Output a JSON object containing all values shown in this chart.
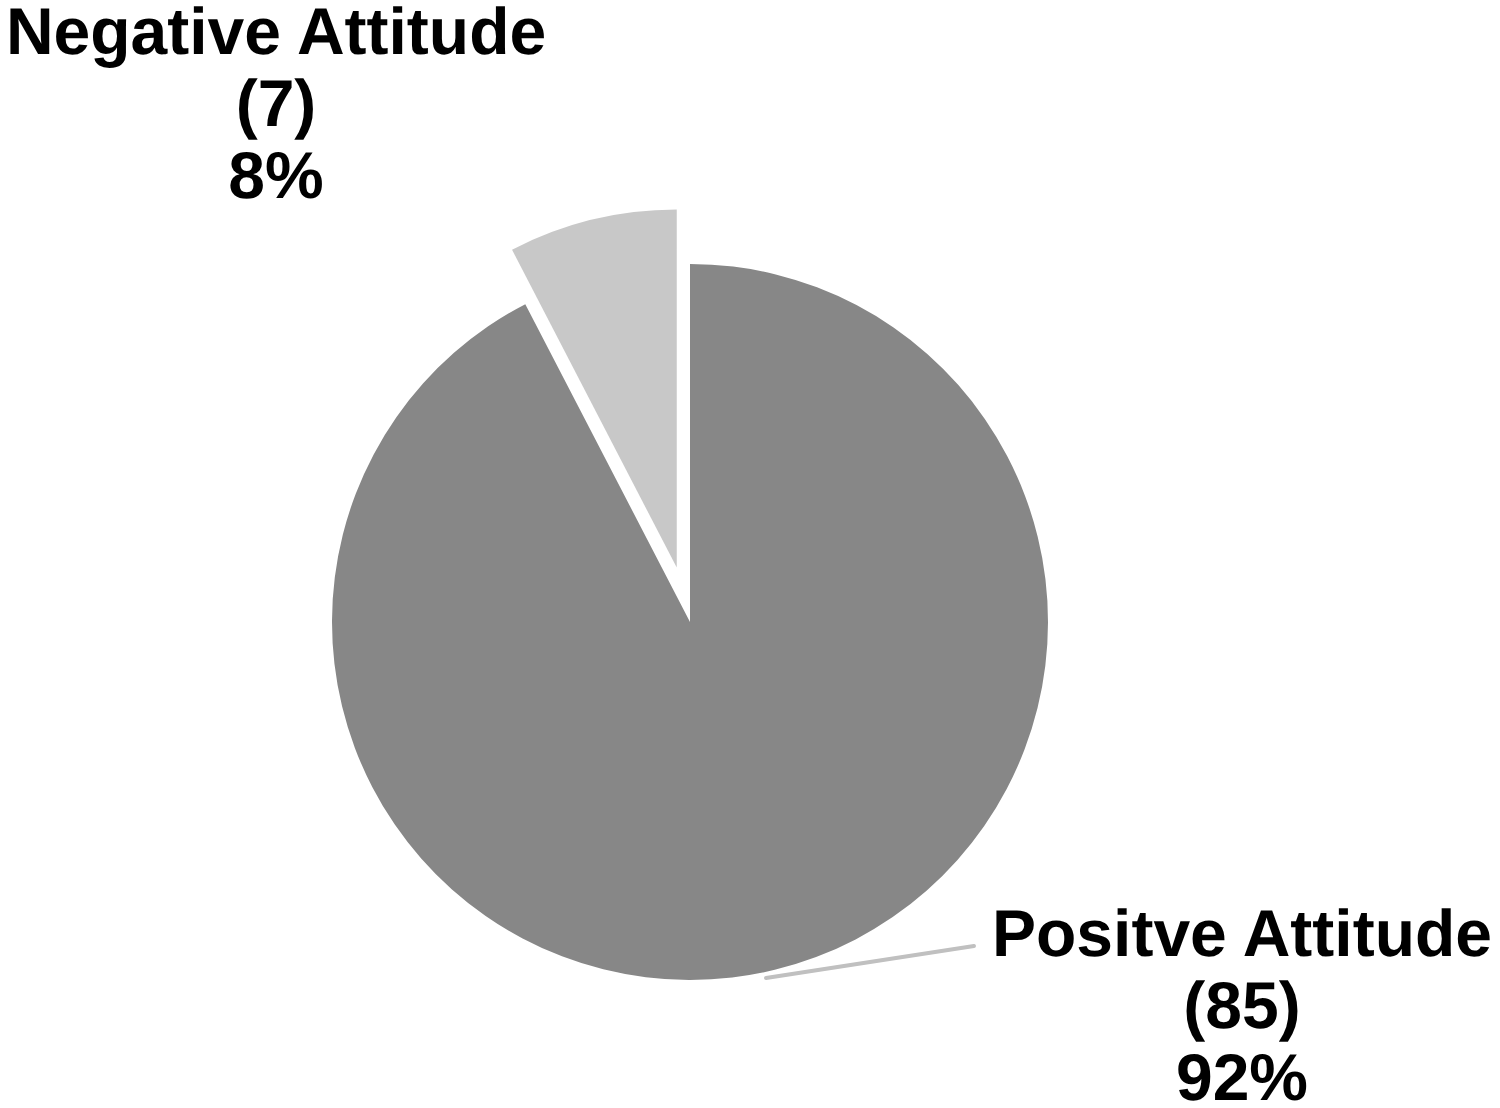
{
  "chart_data": {
    "type": "pie",
    "categories": [
      "Positve Attitude",
      "Negative Attitude"
    ],
    "values": [
      85,
      7
    ],
    "value_labels": [
      "(85)\n92%",
      "(7)\n8%"
    ],
    "colors": [
      "#878787",
      "#c8c8c8"
    ]
  }
}
